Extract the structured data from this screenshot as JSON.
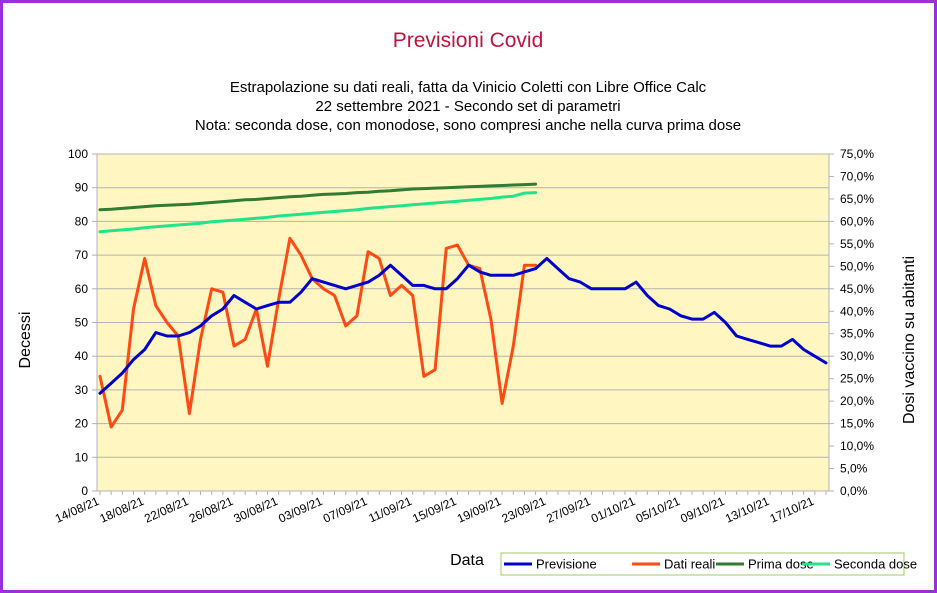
{
  "chart_data": {
    "type": "line",
    "title": "Previsioni Covid",
    "subtitle_lines": [
      "Estrapolazione su dati reali, fatta da Vinicio Coletti con Libre Office Calc",
      "22 settembre 2021 - Secondo set di parametri",
      "Nota: seconda dose, con monodose, sono compresi anche nella curva prima dose"
    ],
    "xlabel": "Data",
    "ylabel": "Decessi",
    "y2label": "Dosi vaccino su abitanti",
    "ylim": [
      0,
      100
    ],
    "y2lim": [
      0,
      75
    ],
    "yticks": [
      "0",
      "10",
      "20",
      "30",
      "40",
      "50",
      "60",
      "70",
      "80",
      "90",
      "100"
    ],
    "y2ticks": [
      "0,0%",
      "5,0%",
      "10,0%",
      "15,0%",
      "20,0%",
      "25,0%",
      "30,0%",
      "35,0%",
      "40,0%",
      "45,0%",
      "50,0%",
      "55,0%",
      "60,0%",
      "65,0%",
      "70,0%",
      "75,0%"
    ],
    "x_tick_labels": [
      "14/08/21",
      "18/08/21",
      "22/08/21",
      "26/08/21",
      "30/08/21",
      "03/09/21",
      "07/09/21",
      "11/09/21",
      "15/09/21",
      "19/09/21",
      "23/09/21",
      "27/09/21",
      "01/10/21",
      "05/10/21",
      "09/10/21",
      "13/10/21",
      "17/10/21"
    ],
    "x_count": 66,
    "grid": "horizontal",
    "legend_position": "bottom-right",
    "series": [
      {
        "name": "Previsione",
        "color": "#0000cc",
        "axis": "left",
        "values": [
          29,
          32,
          35,
          39,
          42,
          47,
          46,
          46,
          47,
          49,
          52,
          54,
          58,
          56,
          54,
          55,
          56,
          56,
          59,
          63,
          62,
          61,
          60,
          61,
          62,
          64,
          67,
          64,
          61,
          61,
          60,
          60,
          63,
          67,
          65,
          64,
          64,
          64,
          65,
          66,
          69,
          66,
          63,
          62,
          60,
          60,
          60,
          60,
          62,
          58,
          55,
          54,
          52,
          51,
          51,
          53,
          50,
          46,
          45,
          44,
          43,
          43,
          45,
          42,
          40,
          38
        ]
      },
      {
        "name": "Dati reali",
        "color": "#ff4a12",
        "axis": "left",
        "values": [
          34,
          19,
          24,
          54,
          69,
          55,
          50,
          46,
          23,
          45,
          60,
          59,
          43,
          45,
          54,
          37,
          57,
          75,
          70,
          63,
          60,
          58,
          49,
          52,
          71,
          69,
          58,
          61,
          58,
          34,
          36,
          72,
          73,
          67,
          66,
          51,
          26,
          43,
          67,
          67
        ]
      },
      {
        "name": "Prima dose",
        "color": "#2e7d32",
        "axis": "right",
        "values": [
          62.6,
          62.7,
          62.9,
          63.1,
          63.3,
          63.5,
          63.6,
          63.7,
          63.8,
          64.0,
          64.2,
          64.4,
          64.6,
          64.8,
          64.9,
          65.1,
          65.3,
          65.5,
          65.6,
          65.8,
          66.0,
          66.1,
          66.2,
          66.4,
          66.5,
          66.7,
          66.8,
          67.0,
          67.2,
          67.3,
          67.4,
          67.5,
          67.6,
          67.7,
          67.8,
          67.9,
          68.0,
          68.1,
          68.2,
          68.3
        ]
      },
      {
        "name": "Seconda dose",
        "color": "#22e38a",
        "axis": "right",
        "values": [
          57.7,
          57.9,
          58.1,
          58.3,
          58.6,
          58.8,
          59.0,
          59.2,
          59.4,
          59.6,
          59.9,
          60.1,
          60.3,
          60.5,
          60.7,
          60.9,
          61.2,
          61.4,
          61.6,
          61.8,
          62.0,
          62.2,
          62.4,
          62.6,
          62.9,
          63.1,
          63.3,
          63.5,
          63.7,
          63.9,
          64.1,
          64.3,
          64.5,
          64.7,
          64.9,
          65.1,
          65.4,
          65.6,
          66.3,
          66.4
        ]
      }
    ]
  }
}
